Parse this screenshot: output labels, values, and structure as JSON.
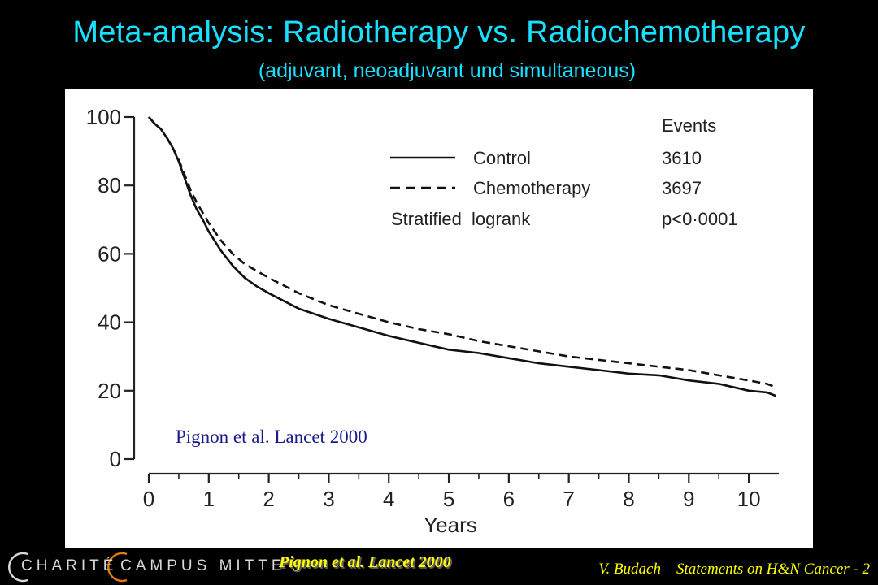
{
  "slide": {
    "title": "Meta-analysis: Radiotherapy vs. Radiochemotherapy",
    "subtitle": "(adjuvant, neoadjuvant und simultaneous)",
    "footer_citation": "Pignon et al. Lancet 2000",
    "credit": "V. Budach – Statements on H&N Cancer - 2",
    "logo": {
      "part1": "CHARITÉ",
      "part2": "CAMPUS MITTE"
    },
    "colors": {
      "background": "#000000",
      "title": "#19e0ff",
      "citation": "#ffff00",
      "inset_citation": "#1a1a8c"
    }
  },
  "chart_data": {
    "type": "line",
    "title": "",
    "xlabel": "Years",
    "ylabel": "",
    "xlim": [
      0,
      10.5
    ],
    "ylim": [
      0,
      100
    ],
    "x_ticks": [
      "0",
      "1",
      "2",
      "3",
      "4",
      "5",
      "6",
      "7",
      "8",
      "9",
      "10"
    ],
    "y_ticks": [
      "0",
      "20",
      "40",
      "60",
      "80",
      "100"
    ],
    "grid": false,
    "legend_header": "Events",
    "legend": [
      {
        "name": "Control",
        "events": "3610",
        "style": "solid"
      },
      {
        "name": "Chemotherapy",
        "events": "3697",
        "style": "dashed"
      }
    ],
    "stat_label": "Stratified  logrank",
    "stat_value": "p<0·0001",
    "annotation": "Pignon et al. Lancet 2000",
    "series": [
      {
        "name": "Control",
        "style": "solid",
        "x": [
          0,
          0.1,
          0.2,
          0.3,
          0.4,
          0.5,
          0.6,
          0.7,
          0.8,
          0.9,
          1.0,
          1.2,
          1.4,
          1.6,
          1.8,
          2.0,
          2.5,
          3.0,
          3.5,
          4.0,
          4.5,
          5.0,
          5.5,
          6.0,
          6.5,
          7.0,
          7.5,
          8.0,
          8.5,
          9.0,
          9.5,
          10.0,
          10.3,
          10.45
        ],
        "y": [
          100,
          98,
          96.5,
          94,
          91,
          87,
          82,
          77,
          73,
          70,
          66.5,
          61,
          56.5,
          53,
          50.5,
          48.5,
          44,
          41,
          38.5,
          36,
          34,
          32,
          31,
          29.5,
          28,
          27,
          26,
          25,
          24.5,
          23,
          22,
          20,
          19.5,
          18.5
        ]
      },
      {
        "name": "Chemotherapy",
        "style": "dashed",
        "x": [
          0,
          0.1,
          0.2,
          0.3,
          0.4,
          0.5,
          0.6,
          0.7,
          0.8,
          0.9,
          1.0,
          1.2,
          1.4,
          1.6,
          1.8,
          2.0,
          2.5,
          3.0,
          3.5,
          4.0,
          4.5,
          5.0,
          5.5,
          6.0,
          6.5,
          7.0,
          7.5,
          8.0,
          8.5,
          9.0,
          9.5,
          10.0,
          10.3,
          10.45
        ],
        "y": [
          100,
          98,
          96.5,
          94,
          91,
          87.5,
          83,
          78.5,
          75,
          72,
          69,
          64,
          60,
          57,
          55,
          53,
          48.5,
          45,
          42.5,
          40,
          38,
          36.5,
          34.5,
          33,
          31.5,
          30,
          29,
          28,
          27,
          26,
          24.5,
          23,
          22,
          21
        ]
      }
    ]
  }
}
